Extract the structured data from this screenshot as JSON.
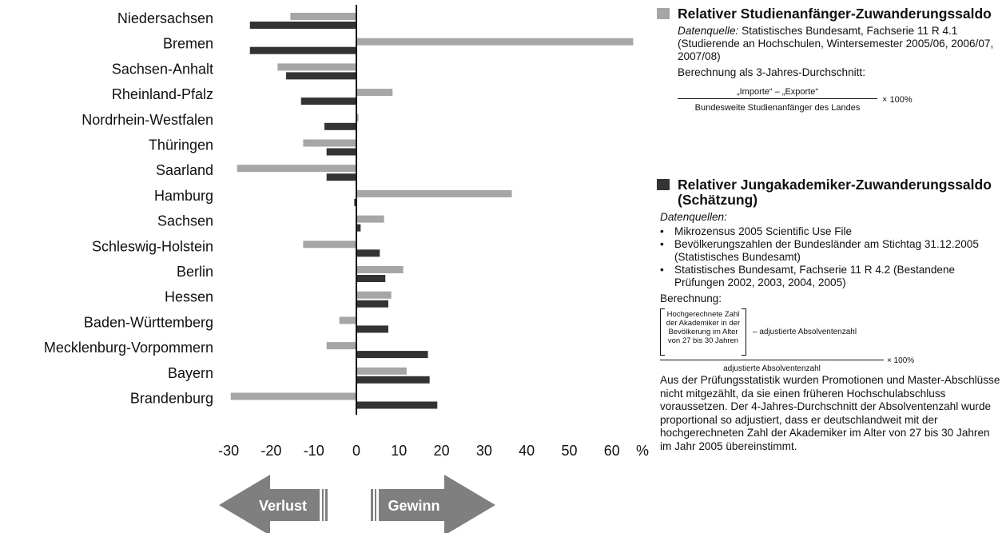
{
  "chart_data": {
    "type": "bar",
    "orientation": "horizontal",
    "categories": [
      "Niedersachsen",
      "Bremen",
      "Sachsen-Anhalt",
      "Rheinland-Pfalz",
      "Nordrhein-Westfalen",
      "Thüringen",
      "Saarland",
      "Hamburg",
      "Sachsen",
      "Schleswig-Holstein",
      "Berlin",
      "Hessen",
      "Baden-Württemberg",
      "Mecklenburg-Vorpommern",
      "Bayern",
      "Brandenburg"
    ],
    "series": [
      {
        "name": "Relativer Studienanfänger-Zuwanderungssaldo",
        "color": "#a6a6a6",
        "values": [
          -15.5,
          65,
          -18.5,
          8.5,
          0.5,
          -12.5,
          -28,
          36.5,
          6.5,
          -12.5,
          11,
          8.2,
          -4,
          -7,
          11.8,
          -29.5
        ]
      },
      {
        "name": "Relativer Jungakademiker-Zuwanderungssaldo (Schätzung)",
        "color": "#333333",
        "values": [
          -25,
          -25,
          -16.5,
          -13,
          -7.5,
          -7,
          -7,
          -0.5,
          1,
          5.5,
          6.8,
          7.5,
          7.5,
          16.8,
          17.2,
          19
        ]
      }
    ],
    "xlim": [
      -30,
      65
    ],
    "xticks": [
      "-30",
      "-20",
      "-10",
      "0",
      "10",
      "20",
      "30",
      "40",
      "50",
      "60"
    ],
    "xunit": "%",
    "arrows": {
      "left": "Verlust",
      "right": "Gewinn"
    },
    "colors": {
      "arrow": "#7f7f7f"
    }
  },
  "legend": {
    "s1": {
      "title": "Relativer Studienanfänger-Zuwanderungssaldo",
      "source_label": "Datenquelle:",
      "source_text": "Statistisches Bundesamt, Fachserie 11 R 4.1 (Studierende an Hochschulen, Wintersemester 2005/06, 2006/07, 2007/08)",
      "calc": "Berechnung als 3-Jahres-Durchschnitt:",
      "numerator": "„Importe“ – „Exporte“",
      "denominator": "Bundesweite Studienanfänger des Landes",
      "factor": "× 100%"
    },
    "s2": {
      "title": "Relativer Jungakademiker-Zuwanderungssaldo (Schätzung)",
      "sources_label": "Datenquellen:",
      "sources": [
        "Mikrozensus 2005 Scientific Use File",
        "Bevölkerungszahlen der Bundesländer am Stichtag 31.12.2005 (Statistisches Bundesamt)",
        "Statistisches Bundesamt, Fachserie 11 R 4.2 (Bestandene Prüfungen 2002, 2003, 2004, 2005)"
      ],
      "calc": "Berechnung:",
      "bracket_text": "Hochgerechnete Zahl der Akademiker in der Bevölkerung im Alter von 27 bis 30 Jahren",
      "minus_term": "–  adjustierte Absolventenzahl",
      "denominator": "adjustierte Absolventenzahl",
      "factor": "× 100%",
      "note": "Aus der Prüfungsstatistik wurden Promotionen und Master-Abschlüsse nicht mitgezählt, da sie einen früheren Hochschulabschluss voraussetzen. Der 4-Jahres-Durchschnitt der Absolventenzahl wurde proportional so adjustiert, dass er deutschlandweit mit der hochgerechneten Zahl der Akademiker im Alter von 27 bis 30 Jahren im Jahr 2005 übereinstimmt."
    }
  }
}
